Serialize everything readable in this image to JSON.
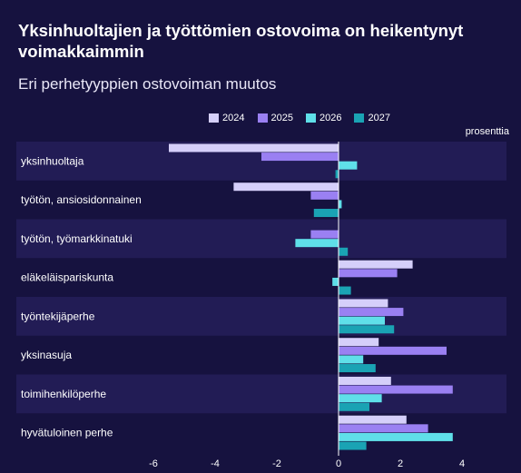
{
  "header": {
    "title": "Yksinhuoltajien ja työttömien ostovoima on heikentynyt voimakkaimmin",
    "subtitle": "Eri perhetyyppien ostovoiman muutos"
  },
  "colors": {
    "background": "#16123f",
    "band": "#221c55",
    "zero_line": "#ffffff"
  },
  "chart_data": {
    "type": "bar",
    "orientation": "horizontal",
    "title": "Yksinhuoltajien ja työttömien ostovoima on heikentynyt voimakkaimmin",
    "subtitle": "Eri perhetyyppien ostovoiman muutos",
    "unit_label": "prosenttia",
    "categories": [
      "yksinhuoltaja",
      "työtön, ansiosidonnainen",
      "työtön, työmarkkinatuki",
      "eläkeläispariskunta",
      "työntekijäperhe",
      "yksinasuja",
      "toimihenkilöperhe",
      "hyvätuloinen perhe"
    ],
    "series": [
      {
        "name": "2024",
        "color": "#d5cffa",
        "values": [
          -5.5,
          -3.4,
          0,
          2.4,
          1.6,
          1.3,
          1.7,
          2.2
        ]
      },
      {
        "name": "2025",
        "color": "#9a80f2",
        "values": [
          -2.5,
          -0.9,
          -0.9,
          1.9,
          2.1,
          3.5,
          3.7,
          2.9
        ]
      },
      {
        "name": "2026",
        "color": "#5fdfe9",
        "values": [
          0.6,
          0.1,
          -1.4,
          -0.2,
          1.5,
          0.8,
          1.4,
          3.7
        ]
      },
      {
        "name": "2027",
        "color": "#1aa3b4",
        "values": [
          -0.1,
          -0.8,
          0.3,
          0.4,
          1.8,
          1.2,
          1.0,
          0.9
        ]
      }
    ],
    "xlim": [
      -6.5,
      5.5
    ],
    "xticks": [
      -6,
      -4,
      -2,
      0,
      2,
      4
    ],
    "legend_position": "top",
    "grid": false
  }
}
